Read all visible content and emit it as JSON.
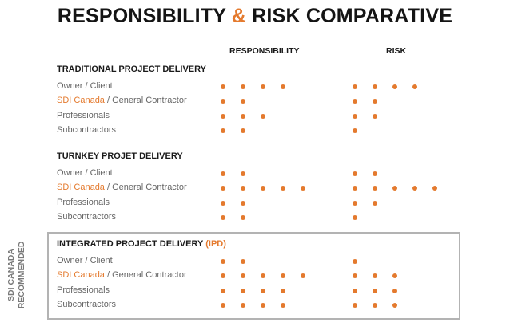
{
  "title_part1": "RESPONSIBILITY ",
  "title_amp": "&",
  "title_part2": " RISK COMPARATIVE",
  "col_responsibility": "RESPONSIBILITY",
  "col_risk": "RISK",
  "side_label_line1": "SDI CANADA",
  "side_label_line2": "RECOMMENDED",
  "accent_color": "#e47a2e",
  "sections": [
    {
      "title": "TRADITIONAL PROJECT DELIVERY",
      "title_highlight": "",
      "rows": [
        {
          "label_highlight": "",
          "label": "Owner / Client",
          "responsibility": 4,
          "risk": 4
        },
        {
          "label_highlight": "SDI Canada",
          "label": " / General Contractor",
          "responsibility": 2,
          "risk": 2
        },
        {
          "label_highlight": "",
          "label": "Professionals",
          "responsibility": 3,
          "risk": 2
        },
        {
          "label_highlight": "",
          "label": "Subcontractors",
          "responsibility": 2,
          "risk": 1
        }
      ]
    },
    {
      "title": "TURNKEY PROJET DELIVERY",
      "title_highlight": "",
      "rows": [
        {
          "label_highlight": "",
          "label": "Owner / Client",
          "responsibility": 2,
          "risk": 2
        },
        {
          "label_highlight": "SDI Canada",
          "label": " / General Contractor",
          "responsibility": 5,
          "risk": 5
        },
        {
          "label_highlight": "",
          "label": "Professionals",
          "responsibility": 2,
          "risk": 2
        },
        {
          "label_highlight": "",
          "label": "Subcontractors",
          "responsibility": 2,
          "risk": 1
        }
      ]
    },
    {
      "title": "INTEGRATED PROJECT DELIVERY ",
      "title_highlight": "(IPD)",
      "rows": [
        {
          "label_highlight": "",
          "label": "Owner / Client",
          "responsibility": 2,
          "risk": 1
        },
        {
          "label_highlight": "SDI Canada",
          "label": " / General Contractor",
          "responsibility": 5,
          "risk": 3
        },
        {
          "label_highlight": "",
          "label": "Professionals",
          "responsibility": 4,
          "risk": 3
        },
        {
          "label_highlight": "",
          "label": "Subcontractors",
          "responsibility": 4,
          "risk": 3
        }
      ]
    }
  ]
}
